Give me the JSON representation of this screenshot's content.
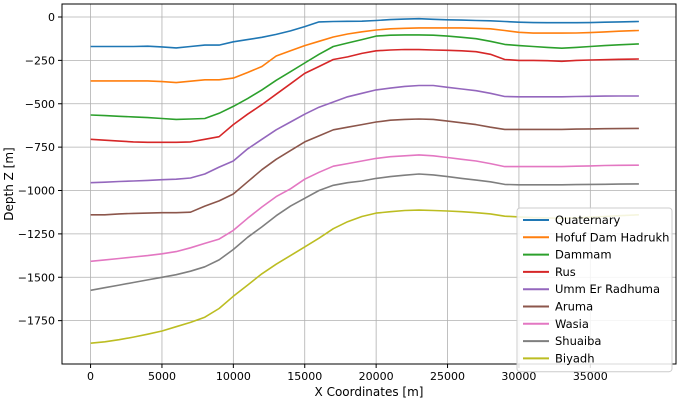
{
  "chart_data": {
    "type": "line",
    "title": "",
    "xlabel": "X Coordinates [m]",
    "ylabel": "Depth Z [m]",
    "xlim": [
      -2000,
      41000
    ],
    "ylim": [
      -2000,
      75
    ],
    "xticks": [
      0,
      5000,
      10000,
      15000,
      20000,
      25000,
      30000,
      35000
    ],
    "yticks": [
      0,
      -250,
      -500,
      -750,
      -1000,
      -1250,
      -1500,
      -1750
    ],
    "xtick_labels": [
      "0",
      "5000",
      "10000",
      "15000",
      "20000",
      "25000",
      "30000",
      "35000"
    ],
    "ytick_labels": [
      "0",
      "−250",
      "−500",
      "−750",
      "−1000",
      "−1250",
      "−1500",
      "−1750"
    ],
    "grid": true,
    "legend_position": "lower-right",
    "x": [
      0,
      1000,
      2000,
      3000,
      4000,
      5000,
      6000,
      7000,
      8000,
      9000,
      10000,
      11000,
      12000,
      13000,
      14000,
      15000,
      16000,
      17000,
      18000,
      19000,
      20000,
      21000,
      22000,
      23000,
      24000,
      25000,
      26000,
      27000,
      28000,
      29000,
      30000,
      31000,
      32000,
      33000,
      34000,
      35000,
      36000,
      37000,
      38400
    ],
    "series": [
      {
        "name": "Quaternary",
        "color": "#1f77b4",
        "values": [
          -170,
          -170,
          -170,
          -170,
          -168,
          -172,
          -178,
          -170,
          -162,
          -162,
          -143,
          -130,
          -117,
          -100,
          -80,
          -55,
          -28,
          -26,
          -25,
          -24,
          -20,
          -15,
          -12,
          -10,
          -13,
          -16,
          -18,
          -20,
          -22,
          -26,
          -30,
          -32,
          -33,
          -33,
          -33,
          -32,
          -30,
          -28,
          -26
        ]
      },
      {
        "name": "Hofuf Dam Hadrukh",
        "color": "#ff7f0e",
        "values": [
          -368,
          -368,
          -368,
          -368,
          -368,
          -372,
          -378,
          -370,
          -362,
          -362,
          -352,
          -320,
          -285,
          -225,
          -195,
          -165,
          -140,
          -115,
          -98,
          -85,
          -75,
          -68,
          -65,
          -63,
          -63,
          -63,
          -63,
          -65,
          -68,
          -78,
          -88,
          -93,
          -93,
          -93,
          -92,
          -90,
          -86,
          -82,
          -78
        ]
      },
      {
        "name": "Dammam",
        "color": "#2ca02c",
        "values": [
          -565,
          -568,
          -572,
          -576,
          -580,
          -585,
          -590,
          -588,
          -585,
          -555,
          -515,
          -470,
          -420,
          -365,
          -315,
          -265,
          -215,
          -170,
          -150,
          -130,
          -110,
          -105,
          -103,
          -103,
          -105,
          -110,
          -117,
          -125,
          -140,
          -158,
          -165,
          -170,
          -175,
          -180,
          -175,
          -170,
          -165,
          -160,
          -155
        ]
      },
      {
        "name": "Rus",
        "color": "#d62728",
        "values": [
          -705,
          -710,
          -715,
          -720,
          -722,
          -722,
          -722,
          -720,
          -705,
          -690,
          -620,
          -560,
          -505,
          -445,
          -385,
          -325,
          -285,
          -245,
          -230,
          -210,
          -195,
          -190,
          -187,
          -188,
          -190,
          -192,
          -195,
          -200,
          -215,
          -245,
          -250,
          -250,
          -252,
          -255,
          -250,
          -248,
          -246,
          -244,
          -242
        ]
      },
      {
        "name": "Umm Er Radhuma",
        "color": "#9467bd",
        "values": [
          -955,
          -952,
          -948,
          -945,
          -942,
          -938,
          -935,
          -928,
          -905,
          -865,
          -830,
          -760,
          -705,
          -650,
          -605,
          -560,
          -520,
          -490,
          -460,
          -440,
          -420,
          -410,
          -400,
          -395,
          -395,
          -405,
          -415,
          -425,
          -440,
          -458,
          -460,
          -460,
          -460,
          -460,
          -458,
          -457,
          -456,
          -455,
          -455
        ]
      },
      {
        "name": "Aruma",
        "color": "#8c564b",
        "values": [
          -1140,
          -1140,
          -1135,
          -1132,
          -1130,
          -1128,
          -1128,
          -1125,
          -1090,
          -1060,
          -1020,
          -950,
          -880,
          -820,
          -770,
          -720,
          -685,
          -650,
          -635,
          -620,
          -605,
          -595,
          -590,
          -588,
          -590,
          -600,
          -610,
          -620,
          -635,
          -648,
          -648,
          -648,
          -648,
          -648,
          -646,
          -645,
          -644,
          -643,
          -642
        ]
      },
      {
        "name": "Wasia",
        "color": "#e377c2",
        "values": [
          -1408,
          -1400,
          -1392,
          -1383,
          -1375,
          -1365,
          -1352,
          -1330,
          -1305,
          -1280,
          -1230,
          -1160,
          -1095,
          -1035,
          -990,
          -935,
          -895,
          -860,
          -845,
          -830,
          -815,
          -805,
          -800,
          -795,
          -800,
          -810,
          -820,
          -830,
          -845,
          -862,
          -862,
          -862,
          -862,
          -862,
          -860,
          -858,
          -856,
          -855,
          -854
        ]
      },
      {
        "name": "Shuaiba",
        "color": "#7f7f7f",
        "values": [
          -1575,
          -1560,
          -1545,
          -1530,
          -1515,
          -1500,
          -1485,
          -1465,
          -1440,
          -1400,
          -1340,
          -1270,
          -1210,
          -1145,
          -1090,
          -1045,
          -1000,
          -970,
          -955,
          -945,
          -930,
          -920,
          -912,
          -905,
          -910,
          -920,
          -930,
          -940,
          -950,
          -965,
          -967,
          -967,
          -967,
          -967,
          -966,
          -965,
          -964,
          -963,
          -962
        ]
      },
      {
        "name": "Biyadh",
        "color": "#bcbd22",
        "values": [
          -1880,
          -1872,
          -1860,
          -1845,
          -1828,
          -1810,
          -1785,
          -1760,
          -1730,
          -1680,
          -1610,
          -1545,
          -1480,
          -1425,
          -1375,
          -1325,
          -1275,
          -1220,
          -1180,
          -1150,
          -1130,
          -1122,
          -1115,
          -1113,
          -1115,
          -1118,
          -1122,
          -1128,
          -1135,
          -1148,
          -1152,
          -1156,
          -1158,
          -1160,
          -1158,
          -1154,
          -1150,
          -1145,
          -1140
        ]
      }
    ]
  }
}
